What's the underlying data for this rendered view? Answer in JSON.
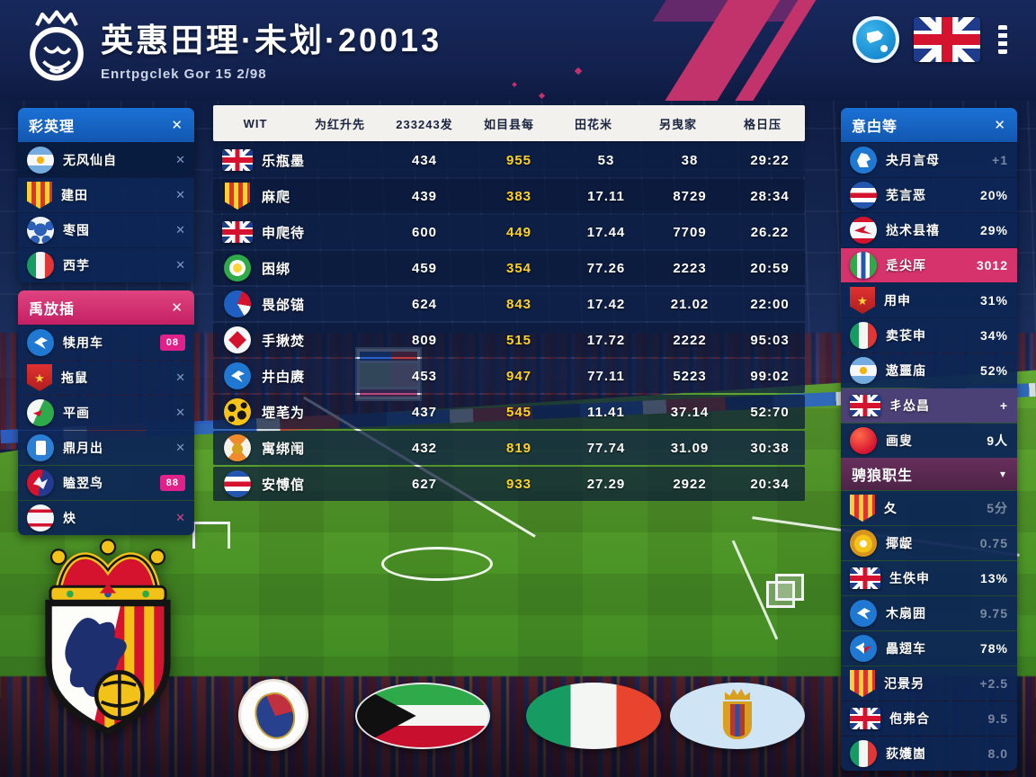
{
  "header": {
    "title": "英惠田理·未划·20013",
    "subtitle": "Enrtpgclek Gor 15 2/98",
    "logo_icon": "lion-crown-logo",
    "actions": [
      {
        "icon": "blue-flag-circle"
      },
      {
        "icon": "uk-big"
      },
      {
        "icon": "ornament"
      }
    ]
  },
  "left_panels": [
    {
      "title": "彩英理",
      "close": "✕",
      "style": "blue",
      "items": [
        {
          "icon": "argentina",
          "label": "无风仙自",
          "action": "✕"
        },
        {
          "icon": "crest-stripes",
          "label": "建田",
          "action": "✕"
        },
        {
          "icon": "blue-ball",
          "label": "枣囤",
          "action": "✕"
        },
        {
          "icon": "italy",
          "label": "西芋",
          "action": "✕"
        }
      ]
    },
    {
      "title": "禹放插",
      "close": "✕",
      "style": "pink",
      "items": [
        {
          "icon": "blue-bird",
          "label": "犊用车",
          "badge": "08"
        },
        {
          "icon": "red-crest",
          "label": "拖鼠",
          "action": "✕"
        },
        {
          "icon": "green-flag",
          "label": "平画",
          "action": "✕"
        },
        {
          "icon": "blue-doc",
          "label": "鼎月出",
          "action": "✕"
        },
        {
          "icon": "red-blue-bird",
          "label": "瞌翌鸟",
          "badge": "88"
        },
        {
          "icon": "white-red",
          "label": "炔",
          "action": "✕",
          "action_style": "pink"
        }
      ]
    }
  ],
  "table": {
    "columns": [
      "WIT",
      "为红升先",
      "233243发",
      "如目县每",
      "田花米",
      "另曳家",
      "格日压"
    ],
    "rows": [
      {
        "icon": "uk",
        "name": "乐瓶墨",
        "values": [
          "434",
          "955",
          "53",
          "38",
          "29:22"
        ]
      },
      {
        "icon": "crest-stripes",
        "name": "麻爬",
        "values": [
          "439",
          "383",
          "17.11",
          "8729",
          "28:34"
        ]
      },
      {
        "icon": "uk",
        "name": "申爬待",
        "values": [
          "600",
          "449",
          "17.44",
          "7709",
          "26.22"
        ]
      },
      {
        "icon": "green-badge",
        "name": "困绑",
        "values": [
          "459",
          "354",
          "77.26",
          "2223",
          "20:59"
        ]
      },
      {
        "icon": "blue-crest",
        "name": "畏邰锚",
        "values": [
          "624",
          "843",
          "17.42",
          "21.02",
          "22:00"
        ]
      },
      {
        "icon": "red-diamond",
        "name": "手揪焚",
        "values": [
          "809",
          "515",
          "17.72",
          "2222",
          "95:03"
        ]
      },
      {
        "icon": "blue-bird",
        "name": "井甴赓",
        "values": [
          "453",
          "947",
          "77.11",
          "5223",
          "99:02"
        ]
      },
      {
        "icon": "yellow-ball",
        "name": "堽芼为",
        "values": [
          "437",
          "545",
          "11.41",
          "37.14",
          "52:70"
        ]
      },
      {
        "icon": "trophy-badge",
        "name": "寓绑闱",
        "values": [
          "432",
          "819",
          "77.74",
          "31.09",
          "30:38"
        ]
      },
      {
        "icon": "stripes-circle",
        "name": "安愽倌",
        "values": [
          "627",
          "933",
          "27.29",
          "2922",
          "20:34"
        ]
      }
    ]
  },
  "right_panel": {
    "title": "意甴等",
    "close": "✕",
    "items": [
      {
        "icon": "blue-horse",
        "label": "夬月言母",
        "value": "+1",
        "value_style": "dim"
      },
      {
        "icon": "stripes-circle",
        "label": "芜言恶",
        "value": "20%"
      },
      {
        "icon": "red-eagle",
        "label": "挞术县禧",
        "value": "29%"
      },
      {
        "icon": "green-stripes",
        "label": "辵尖厍",
        "value": "3012",
        "highlight": "pink"
      },
      {
        "icon": "red-crest",
        "label": "用申",
        "value": "31%"
      },
      {
        "icon": "italy",
        "label": "卖苌申",
        "value": "34%"
      },
      {
        "icon": "argentina",
        "label": "遨噩庙",
        "value": "52%"
      },
      {
        "icon": "uk",
        "label": "丯怂昌",
        "value": "+",
        "highlight": "purple"
      },
      {
        "icon": "red-ball",
        "label": "画叟",
        "value": "9人"
      }
    ],
    "subheader": {
      "title": "骋狼职生",
      "chevron": "▾"
    },
    "sub_items": [
      {
        "icon": "crest-stripes",
        "label": "夂",
        "value": "5分",
        "value_style": "dim"
      },
      {
        "icon": "yellow-crest",
        "label": "揶龊",
        "value": "0.75",
        "value_style": "dim"
      },
      {
        "icon": "uk",
        "label": "生佚申",
        "value": "13%"
      },
      {
        "icon": "blue-bird",
        "label": "木扇囲",
        "value": "9.75",
        "value_style": "dim"
      },
      {
        "icon": "blue-eagle",
        "label": "畾翅车",
        "value": "78%"
      },
      {
        "icon": "crest-stripes",
        "label": "汜景另",
        "value": "+2.5",
        "value_style": "dim"
      },
      {
        "icon": "uk",
        "label": "佨弗合",
        "value": "9.5",
        "value_style": "dim"
      },
      {
        "icon": "italy",
        "label": "荻嬳崮",
        "value": "8.0",
        "value_style": "dim"
      }
    ]
  },
  "bottom_flags": [
    {
      "icon": "oval-crest"
    },
    {
      "icon": "kuwait"
    },
    {
      "icon": "italy-rect"
    },
    {
      "icon": "royal-blue"
    }
  ],
  "colors": {
    "accent_pink": "#d6336c",
    "panel_blue": "#1a6fd4",
    "value_yellow": "#ffd324",
    "header_maroon": "#5e2a52",
    "pitch_green": "#4d9627"
  }
}
